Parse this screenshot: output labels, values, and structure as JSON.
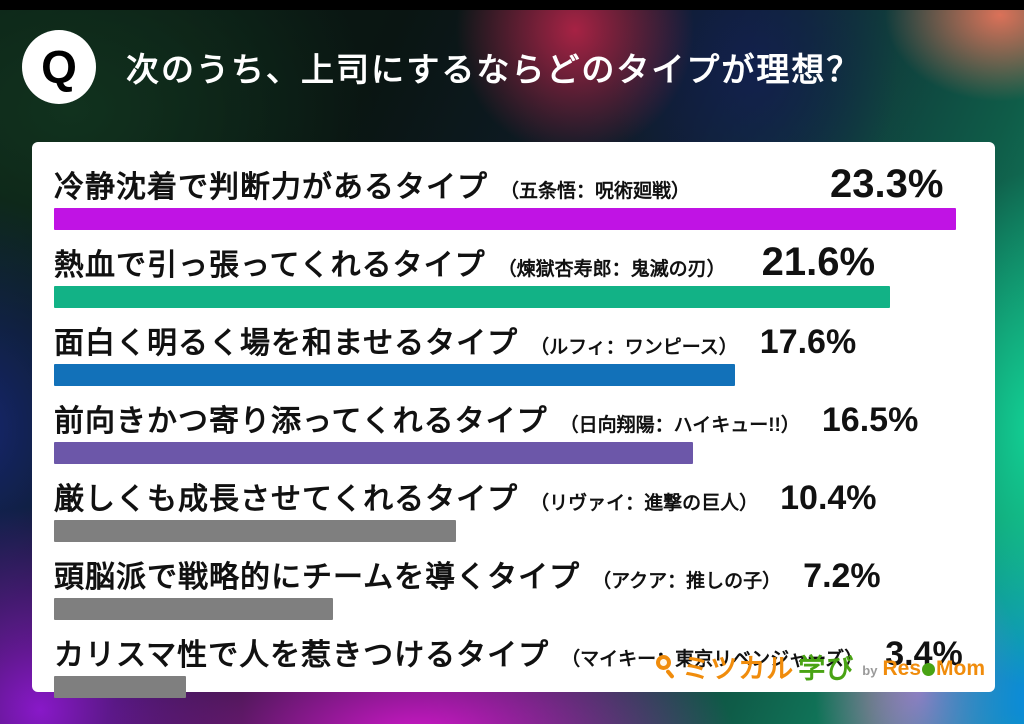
{
  "header": {
    "badge": "Q",
    "title": "次のうち、上司にするならどのタイプが理想？"
  },
  "chart_data": {
    "type": "bar",
    "orientation": "horizontal",
    "title": "次のうち、上司にするならどのタイプが理想？",
    "unit": "%",
    "xlim": [
      0,
      23.3
    ],
    "rows": [
      {
        "label": "冷静沈着で判断力があるタイプ",
        "source": "（五条悟：呪術廻戦）",
        "value": 23.3,
        "pct_label": "23.3%",
        "color": "#c013e4",
        "emphasis": true
      },
      {
        "label": "熱血で引っ張ってくれるタイプ",
        "source": "（煉獄杏寿郎：鬼滅の刃）",
        "value": 21.6,
        "pct_label": "21.6%",
        "color": "#12b286",
        "emphasis": true
      },
      {
        "label": "面白く明るく場を和ませるタイプ",
        "source": "（ルフィ：ワンピース）",
        "value": 17.6,
        "pct_label": "17.6%",
        "color": "#1271b9",
        "emphasis": false
      },
      {
        "label": "前向きかつ寄り添ってくれるタイプ",
        "source": "（日向翔陽：ハイキュー!!）",
        "value": 16.5,
        "pct_label": "16.5%",
        "color": "#6c57a9",
        "emphasis": false
      },
      {
        "label": "厳しくも成長させてくれるタイプ",
        "source": "（リヴァイ：進撃の巨人）",
        "value": 10.4,
        "pct_label": "10.4%",
        "color": "#7f7f7f",
        "emphasis": false
      },
      {
        "label": "頭脳派で戦略的にチームを導くタイプ",
        "source": "（アクア：推しの子）",
        "value": 7.2,
        "pct_label": "7.2%",
        "color": "#7f7f7f",
        "emphasis": false
      },
      {
        "label": "カリスマ性で人を惹きつけるタイプ",
        "source": "（マイキー：東京リベンジャーズ）",
        "value": 3.4,
        "pct_label": "3.4%",
        "color": "#7f7f7f",
        "emphasis": false
      }
    ]
  },
  "footer_logo": {
    "brand_part1": "ミツカル",
    "brand_part2": "学び",
    "by": "by",
    "resemom_part1": "Res",
    "resemom_part2": "Mom",
    "colors": {
      "orange": "#f08c0c",
      "green": "#49a314",
      "gray": "#9a9a9a"
    }
  }
}
